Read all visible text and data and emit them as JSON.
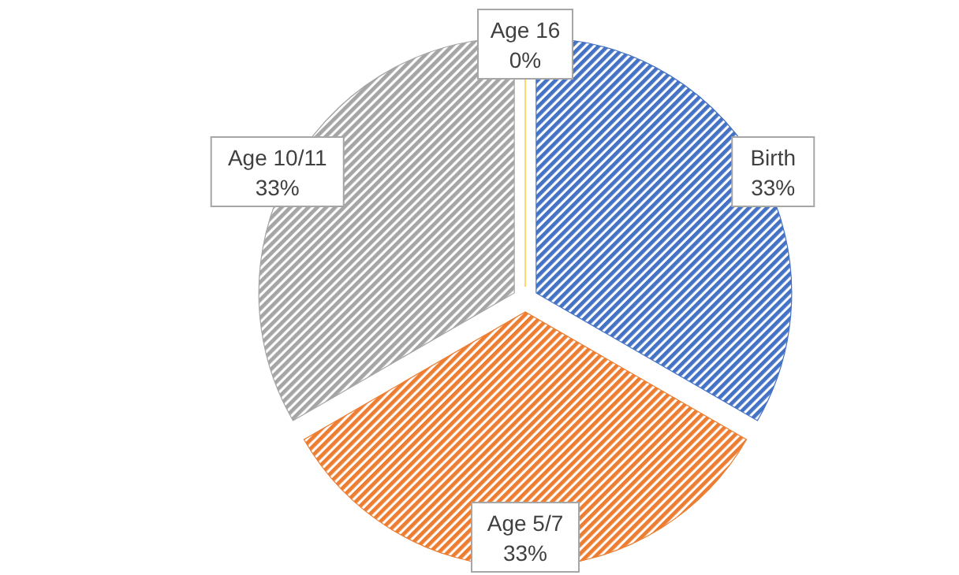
{
  "chart_data": {
    "type": "pie",
    "categories": [
      "Birth",
      "Age 5/7",
      "Age 10/11",
      "Age 16"
    ],
    "values": [
      33,
      33,
      33,
      0
    ],
    "colors": [
      "#4472c4",
      "#ed7d31",
      "#a5a5a5",
      "#ffc000"
    ],
    "value_labels": [
      "33%",
      "33%",
      "33%",
      "0%"
    ]
  }
}
